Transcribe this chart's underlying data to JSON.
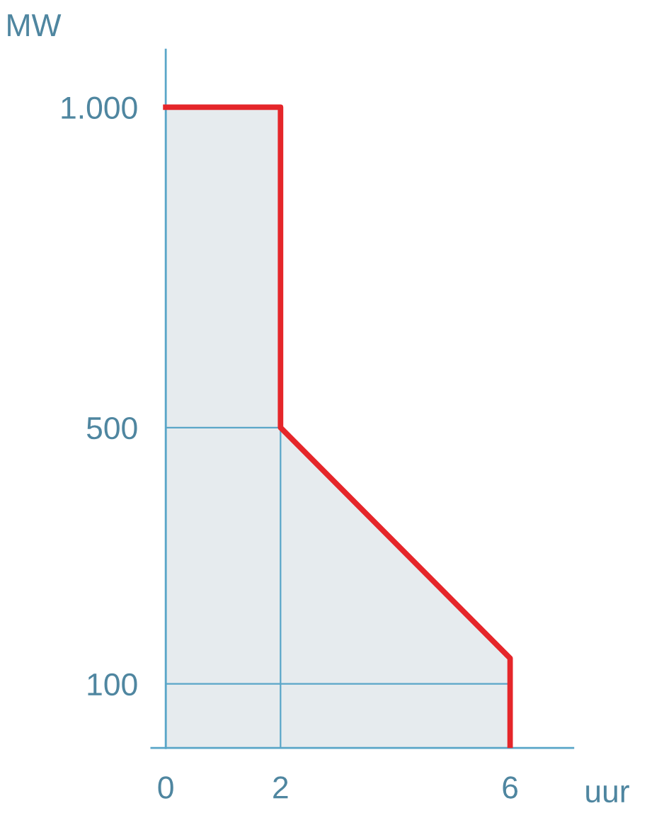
{
  "chart_data": {
    "type": "area",
    "xlabel": "uur",
    "ylabel": "MW",
    "x": [
      0,
      2,
      2,
      6,
      6
    ],
    "series": [
      {
        "color": "#e5262a",
        "values": [
          1000,
          1000,
          500,
          140,
          0
        ]
      }
    ],
    "xlim": [
      -0.25,
      7.1
    ],
    "ylim": [
      0,
      1090
    ],
    "xticks": [
      0,
      2,
      6
    ],
    "yticks": [
      100,
      500,
      {
        "value": 1000,
        "label": "1.000"
      }
    ],
    "grid": true
  }
}
